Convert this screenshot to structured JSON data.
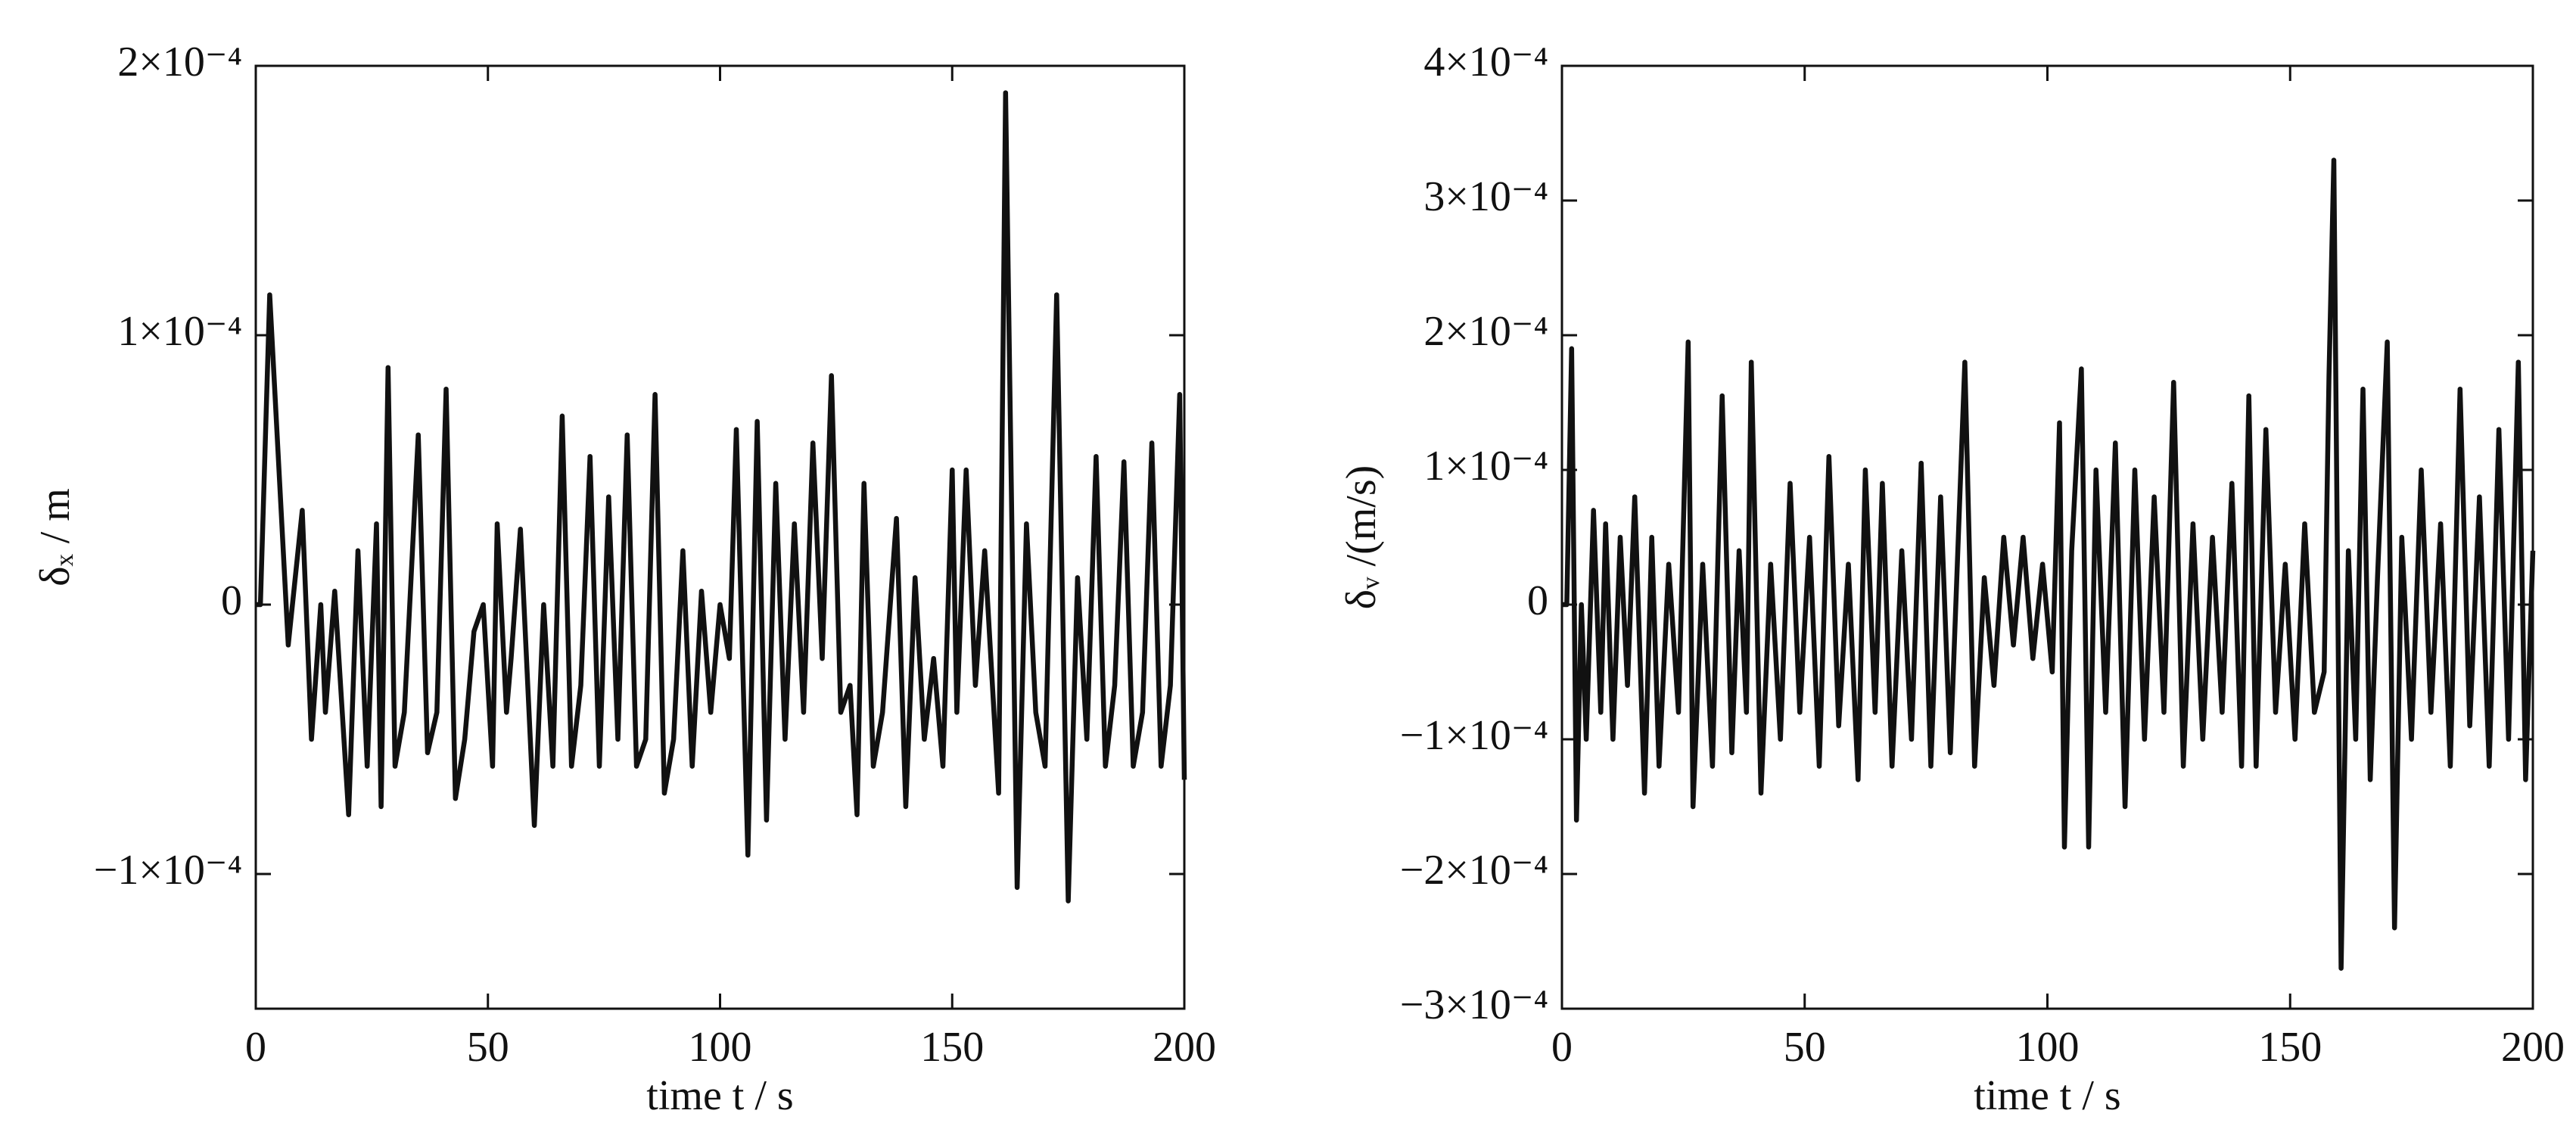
{
  "chart_data": [
    {
      "type": "line",
      "xlabel": "time t / s",
      "ylabel": "δₓ / m",
      "color": "#111111",
      "grid": false,
      "xlim": [
        0,
        200
      ],
      "xticks": [
        0,
        50,
        100,
        150,
        200
      ],
      "ylim": [
        -0.00015,
        0.0002
      ],
      "yticks": [
        {
          "value": 0.0002,
          "label": "2×10⁻⁴"
        },
        {
          "value": 0.0001,
          "label": "1×10⁻⁴"
        },
        0,
        {
          "value": -0.0001,
          "label": "−1×10⁻⁴"
        }
      ],
      "x": [
        0,
        1,
        3,
        7,
        10,
        12,
        14,
        15,
        17,
        20,
        22,
        24,
        26,
        27,
        28.5,
        30,
        32,
        35,
        37,
        39,
        41,
        43,
        45,
        47,
        49,
        51,
        52,
        54,
        55,
        57,
        60,
        62,
        64,
        66,
        68,
        70,
        72,
        74,
        76,
        78,
        80,
        82,
        84,
        86,
        88,
        90,
        92,
        94,
        96,
        98,
        100,
        102,
        103.5,
        106,
        108,
        110,
        112,
        114,
        116,
        118,
        120,
        122,
        124,
        126,
        128,
        129.5,
        131,
        133,
        135,
        138,
        140,
        142,
        144,
        146,
        148,
        150,
        151,
        153,
        155,
        157,
        160,
        161.5,
        164,
        166,
        168,
        170,
        172.5,
        175,
        177,
        179,
        181,
        183,
        185,
        187,
        189,
        191,
        193,
        195,
        197,
        199,
        200
      ],
      "values": [
        0,
        0,
        0.000115,
        -1.5e-05,
        3.5e-05,
        -5e-05,
        0,
        -4e-05,
        5e-06,
        -7.8e-05,
        2e-05,
        -6e-05,
        3e-05,
        -7.5e-05,
        8.8e-05,
        -6e-05,
        -4e-05,
        6.3e-05,
        -5.5e-05,
        -4e-05,
        8e-05,
        -7.2e-05,
        -5e-05,
        -1e-05,
        0,
        -6e-05,
        3e-05,
        -4e-05,
        -2e-05,
        2.8e-05,
        -8.2e-05,
        0,
        -6e-05,
        7e-05,
        -6e-05,
        -3e-05,
        5.5e-05,
        -6e-05,
        4e-05,
        -5e-05,
        6.3e-05,
        -6e-05,
        -5e-05,
        7.8e-05,
        -7e-05,
        -5e-05,
        2e-05,
        -6e-05,
        5e-06,
        -4e-05,
        0,
        -2e-05,
        6.5e-05,
        -9.3e-05,
        6.8e-05,
        -8e-05,
        4.5e-05,
        -5e-05,
        3e-05,
        -4e-05,
        6e-05,
        -2e-05,
        8.5e-05,
        -4e-05,
        -3e-05,
        -7.8e-05,
        4.5e-05,
        -6e-05,
        -4e-05,
        3.2e-05,
        -7.5e-05,
        1e-05,
        -5e-05,
        -2e-05,
        -6e-05,
        5e-05,
        -4e-05,
        5e-05,
        -3e-05,
        2e-05,
        -7e-05,
        0.00019,
        -0.000105,
        3e-05,
        -4e-05,
        -6e-05,
        0.000115,
        -0.00011,
        1e-05,
        -5e-05,
        5.5e-05,
        -6e-05,
        -3e-05,
        5.3e-05,
        -6e-05,
        -4e-05,
        6e-05,
        -6e-05,
        -3e-05,
        7.8e-05,
        -6.5e-05
      ]
    },
    {
      "type": "line",
      "xlabel": "time t / s",
      "ylabel": "δᵥ /(m/s)",
      "color": "#111111",
      "grid": false,
      "xlim": [
        0,
        200
      ],
      "xticks": [
        0,
        50,
        100,
        150,
        200
      ],
      "ylim": [
        -0.0003,
        0.0004
      ],
      "yticks": [
        {
          "value": 0.0004,
          "label": "4×10⁻⁴"
        },
        {
          "value": 0.0003,
          "label": "3×10⁻⁴"
        },
        {
          "value": 0.0002,
          "label": "2×10⁻⁴"
        },
        {
          "value": 0.0001,
          "label": "1×10⁻⁴"
        },
        0,
        {
          "value": -0.0001,
          "label": "−1×10⁻⁴"
        },
        {
          "value": -0.0002,
          "label": "−2×10⁻⁴"
        },
        {
          "value": -0.0003,
          "label": "−3×10⁻⁴"
        }
      ],
      "x": [
        0,
        1,
        2,
        3,
        4,
        5,
        6.5,
        8,
        9,
        10.5,
        12,
        13.5,
        15,
        17,
        18.5,
        20,
        22,
        24,
        26,
        27,
        29,
        31,
        33,
        35,
        36.5,
        38,
        39,
        41,
        43,
        45,
        47,
        49,
        51,
        53,
        55,
        57,
        59,
        61,
        62.5,
        64.5,
        66,
        68,
        70,
        72,
        74,
        76,
        78,
        80,
        83,
        85,
        87,
        89,
        91,
        93,
        95,
        97,
        99,
        101,
        102.5,
        103.5,
        105,
        107,
        108.5,
        110,
        112,
        114,
        116,
        118,
        120,
        122,
        124,
        126,
        128,
        130,
        132,
        134,
        136,
        138,
        140,
        141.5,
        143,
        145,
        147,
        149,
        151,
        153,
        155,
        157,
        158,
        159,
        160.5,
        162,
        163.5,
        165,
        166.5,
        168,
        170,
        171.5,
        173,
        175,
        177,
        179,
        181,
        183,
        185,
        187,
        189,
        191,
        193,
        195,
        197,
        198.5,
        200
      ],
      "values": [
        0,
        0,
        0.00019,
        -0.00016,
        0,
        -0.0001,
        7e-05,
        -8e-05,
        6e-05,
        -0.0001,
        5e-05,
        -6e-05,
        8e-05,
        -0.00014,
        5e-05,
        -0.00012,
        3e-05,
        -8e-05,
        0.000195,
        -0.00015,
        3e-05,
        -0.00012,
        0.000155,
        -0.00011,
        4e-05,
        -8e-05,
        0.00018,
        -0.00014,
        3e-05,
        -0.0001,
        9e-05,
        -8e-05,
        5e-05,
        -0.00012,
        0.00011,
        -9e-05,
        3e-05,
        -0.00013,
        0.0001,
        -8e-05,
        9e-05,
        -0.00012,
        4e-05,
        -0.0001,
        0.000105,
        -0.00012,
        8e-05,
        -0.00011,
        0.00018,
        -0.00012,
        2e-05,
        -6e-05,
        5e-05,
        -3e-05,
        5e-05,
        -4e-05,
        3e-05,
        -5e-05,
        0.000135,
        -0.00018,
        4e-05,
        0.000175,
        -0.00018,
        0.0001,
        -8e-05,
        0.00012,
        -0.00015,
        0.0001,
        -0.0001,
        8e-05,
        -8e-05,
        0.000165,
        -0.00012,
        6e-05,
        -0.0001,
        5e-05,
        -8e-05,
        9e-05,
        -0.00012,
        0.000155,
        -0.00012,
        0.00013,
        -8e-05,
        3e-05,
        -0.0001,
        6e-05,
        -8e-05,
        -5e-05,
        0.00017,
        0.00033,
        -0.00027,
        4e-05,
        -0.0001,
        0.00016,
        -0.00013,
        2e-05,
        0.000195,
        -0.00024,
        5e-05,
        -0.0001,
        0.0001,
        -8e-05,
        6e-05,
        -0.00012,
        0.00016,
        -9e-05,
        8e-05,
        -0.00012,
        0.00013,
        -0.0001,
        0.00018,
        -0.00013,
        4e-05
      ]
    }
  ]
}
